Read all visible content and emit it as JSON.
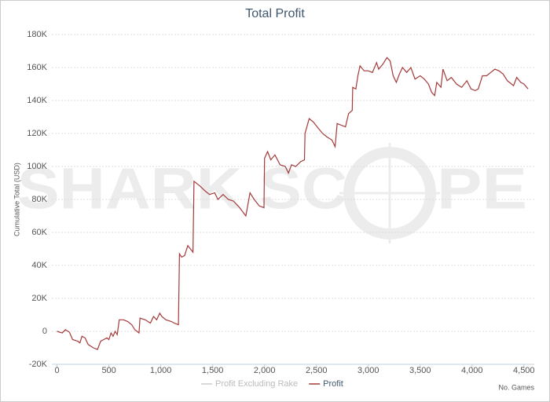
{
  "chart_data": {
    "type": "line",
    "title": "Total Profit",
    "y_label": "Cumulative Total (USD)",
    "x_label": "No. Games",
    "watermark": [
      "SHARK SC",
      "PE"
    ],
    "grid": true,
    "xlim": [
      -50,
      4600
    ],
    "xticks": [
      0,
      500,
      {
        "value": 1000,
        "label": "1,000"
      },
      {
        "value": 1500,
        "label": "1,500"
      },
      {
        "value": 2000,
        "label": "2,000"
      },
      {
        "value": 2500,
        "label": "2,500"
      },
      {
        "value": 3000,
        "label": "3,000"
      },
      {
        "value": 3500,
        "label": "3,500"
      },
      {
        "value": 4000,
        "label": "4,000"
      },
      {
        "value": 4500,
        "label": "4,500"
      }
    ],
    "ylim": [
      -20000,
      180000
    ],
    "yticks": [
      {
        "value": -20000,
        "label": "-20K"
      },
      0,
      {
        "value": 20000,
        "label": "20K"
      },
      {
        "value": 40000,
        "label": "40K"
      },
      {
        "value": 60000,
        "label": "60K"
      },
      {
        "value": 80000,
        "label": "80K"
      },
      {
        "value": 100000,
        "label": "100K"
      },
      {
        "value": 120000,
        "label": "120K"
      },
      {
        "value": 140000,
        "label": "140K"
      },
      {
        "value": 160000,
        "label": "160K"
      },
      {
        "value": 180000,
        "label": "180K"
      }
    ],
    "hidden_series": [
      {
        "name": "Profit Excluding Rake",
        "color": "#cccccc"
      }
    ],
    "x": [
      0,
      50,
      80,
      120,
      150,
      200,
      220,
      240,
      270,
      300,
      350,
      390,
      420,
      450,
      480,
      500,
      520,
      540,
      560,
      580,
      600,
      640,
      680,
      720,
      750,
      790,
      800,
      850,
      900,
      930,
      960,
      990,
      1010,
      1050,
      1100,
      1130,
      1170,
      1180,
      1200,
      1230,
      1260,
      1310,
      1320,
      1380,
      1430,
      1470,
      1520,
      1550,
      1600,
      1650,
      1700,
      1760,
      1820,
      1860,
      1900,
      1950,
      1995,
      2000,
      2030,
      2060,
      2100,
      2150,
      2200,
      2230,
      2260,
      2300,
      2350,
      2385,
      2390,
      2430,
      2470,
      2520,
      2560,
      2600,
      2650,
      2680,
      2700,
      2740,
      2780,
      2810,
      2845,
      2850,
      2880,
      2900,
      2920,
      2960,
      3000,
      3040,
      3080,
      3100,
      3140,
      3180,
      3210,
      3240,
      3270,
      3300,
      3330,
      3370,
      3410,
      3450,
      3500,
      3540,
      3580,
      3610,
      3640,
      3660,
      3700,
      3720,
      3760,
      3800,
      3850,
      3900,
      3950,
      3990,
      4030,
      4060,
      4100,
      4140,
      4180,
      4220,
      4260,
      4300,
      4340,
      4380,
      4400,
      4430,
      4470,
      4500,
      4540
    ],
    "series": [
      {
        "name": "Profit",
        "color": "#a33a3a",
        "values": [
          0,
          -1000,
          1000,
          -500,
          -5000,
          -6000,
          -7000,
          -3000,
          -4000,
          -8000,
          -10000,
          -11000,
          -6000,
          -5000,
          -4000,
          -5000,
          -1000,
          -3000,
          0,
          -2000,
          7000,
          7000,
          6000,
          4000,
          1000,
          -1000,
          8000,
          7000,
          5000,
          9000,
          7000,
          11000,
          9000,
          7000,
          6000,
          5000,
          4000,
          47000,
          45000,
          46000,
          52000,
          48000,
          91000,
          88000,
          85000,
          83000,
          84000,
          80000,
          83000,
          80000,
          79000,
          75000,
          70000,
          84000,
          80000,
          76000,
          75000,
          105000,
          109000,
          104000,
          107000,
          101000,
          100000,
          96000,
          101000,
          100000,
          103000,
          104000,
          120000,
          129000,
          127000,
          123000,
          120000,
          118000,
          116000,
          112000,
          126000,
          125000,
          124000,
          132000,
          134000,
          148000,
          147000,
          155000,
          161000,
          158000,
          158000,
          157000,
          163000,
          159000,
          162000,
          166000,
          164000,
          155000,
          151000,
          156000,
          160000,
          157000,
          160000,
          153000,
          155000,
          153000,
          150000,
          145000,
          143000,
          151000,
          148000,
          159000,
          152000,
          154000,
          150000,
          148000,
          152000,
          147000,
          146000,
          147000,
          155000,
          155000,
          157000,
          159000,
          158000,
          156000,
          152000,
          150000,
          149000,
          154000,
          151000,
          150000,
          147000
        ]
      }
    ]
  }
}
